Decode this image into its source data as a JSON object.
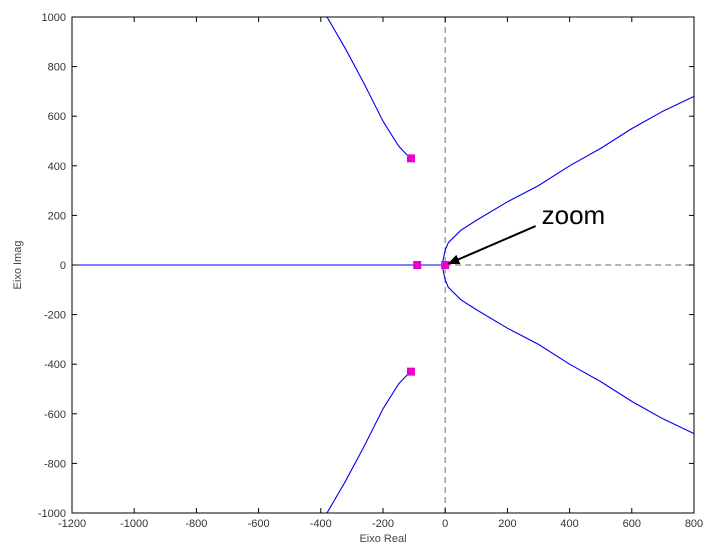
{
  "chart_data": {
    "type": "scatter",
    "title": "",
    "xlabel": "Eixo Real",
    "ylabel": "Eixo Imag",
    "xlim": [
      -1200,
      800
    ],
    "ylim": [
      -1000,
      1000
    ],
    "xticks": [
      -1200,
      -1000,
      -800,
      -600,
      -400,
      -200,
      0,
      200,
      400,
      600,
      800
    ],
    "yticks": [
      -1000,
      -800,
      -600,
      -400,
      -200,
      0,
      200,
      400,
      600,
      800,
      1000
    ],
    "xtick_labels": [
      "-1200",
      "-1000",
      "-800",
      "-600",
      "-400",
      "-200",
      "0",
      "200",
      "400",
      "600",
      "800"
    ],
    "ytick_labels": [
      "-1000",
      "-800",
      "-600",
      "-400",
      "-200",
      "0",
      "200",
      "400",
      "600",
      "800",
      "1000"
    ],
    "grid": false,
    "reference_lines": {
      "x": 0,
      "y": 0,
      "style": "dashed",
      "color": "#888888"
    },
    "colors": {
      "locus": "#0000ee",
      "poles": "#ee00cc",
      "frame": "#000000"
    },
    "series": [
      {
        "values": [
          [
            -110,
            430
          ],
          [
            -120,
            440
          ],
          [
            -150,
            480
          ],
          [
            -200,
            580
          ],
          [
            -260,
            730
          ],
          [
            -320,
            870
          ],
          [
            -380,
            1000
          ]
        ]
      },
      {
        "values": [
          [
            -110,
            -430
          ],
          [
            -120,
            -440
          ],
          [
            -150,
            -480
          ],
          [
            -200,
            -580
          ],
          [
            -260,
            -730
          ],
          [
            -320,
            -870
          ],
          [
            -380,
            -1000
          ]
        ]
      },
      {
        "values": [
          [
            -1200,
            0
          ],
          [
            -100,
            0
          ],
          [
            -10,
            0
          ],
          [
            -5,
            30
          ],
          [
            0,
            60
          ],
          [
            10,
            90
          ],
          [
            50,
            140
          ],
          [
            100,
            180
          ],
          [
            200,
            255
          ],
          [
            300,
            320
          ],
          [
            400,
            400
          ],
          [
            500,
            470
          ],
          [
            600,
            550
          ],
          [
            700,
            620
          ],
          [
            800,
            680
          ]
        ]
      },
      {
        "values": [
          [
            -10,
            0
          ],
          [
            -5,
            -30
          ],
          [
            0,
            -60
          ],
          [
            10,
            -90
          ],
          [
            50,
            -140
          ],
          [
            100,
            -180
          ],
          [
            200,
            -255
          ],
          [
            300,
            -320
          ],
          [
            400,
            -400
          ],
          [
            500,
            -470
          ],
          [
            600,
            -550
          ],
          [
            700,
            -620
          ],
          [
            800,
            -680
          ]
        ]
      }
    ],
    "markers": [
      {
        "x": -110,
        "y": 430
      },
      {
        "x": -110,
        "y": -430
      },
      {
        "x": -90,
        "y": 0
      },
      {
        "x": 0,
        "y": 0
      }
    ],
    "annotations": [
      {
        "text": "zoom",
        "x": 310,
        "y": 165,
        "arrow_to": {
          "x": 10,
          "y": 5
        }
      }
    ]
  }
}
